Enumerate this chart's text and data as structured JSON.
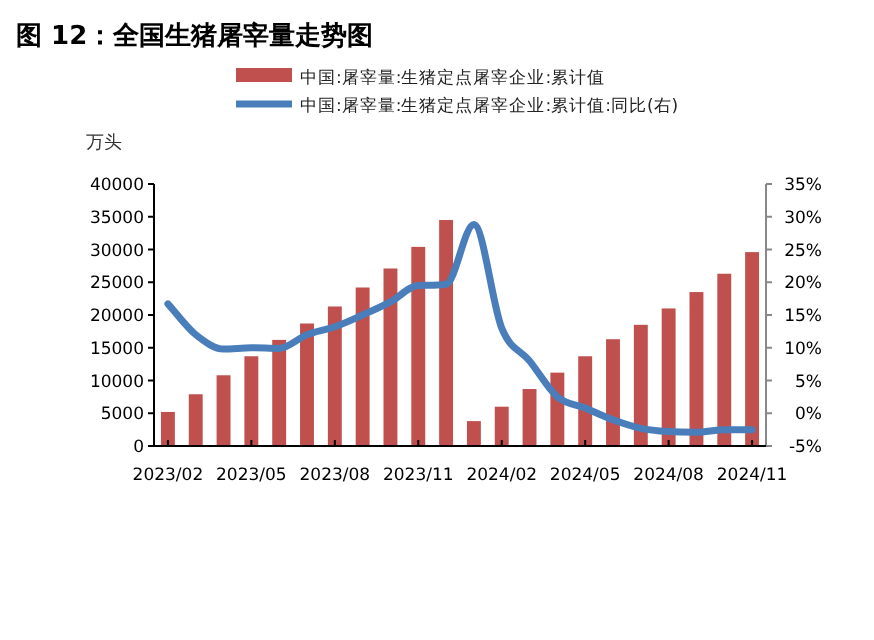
{
  "chart_data": {
    "type": "bar",
    "title": "图 12：全国生猪屠宰量走势图",
    "ylabel": "万头",
    "categories": [
      "2023/02",
      null,
      null,
      "2023/05",
      null,
      null,
      "2023/08",
      null,
      null,
      "2023/11",
      null,
      null,
      "2024/02",
      null,
      null,
      "2024/05",
      null,
      null,
      "2024/08",
      null,
      null,
      "2024/11"
    ],
    "series": [
      {
        "name": "中国:屠宰量:生猪定点屠宰企业:累计值",
        "color": "#c0504d",
        "values": [
          5200,
          7900,
          10800,
          13700,
          16200,
          18700,
          21300,
          24200,
          27100,
          30400,
          34500,
          3800,
          6000,
          8700,
          11200,
          13700,
          16300,
          18500,
          21000,
          23500,
          26300,
          29600
        ]
      },
      {
        "name": "中国:屠宰量:生猪定点屠宰企业:累计值:同比(右)",
        "type": "line",
        "axis": "y2",
        "color": "#4a7ebb",
        "values": [
          16.7,
          12,
          9.8,
          10,
          9.9,
          12,
          13.2,
          15,
          17,
          19.5,
          19.7,
          28.8,
          13,
          8,
          2.5,
          0.8,
          -1,
          -2.3,
          -2.8,
          -2.9,
          -2.5,
          -2.5
        ]
      }
    ],
    "ylim": [
      0,
      40000
    ],
    "yticks": [
      0,
      5000,
      10000,
      15000,
      20000,
      25000,
      30000,
      35000,
      40000
    ],
    "y2lim": [
      -5,
      35
    ],
    "y2ticks": [
      {
        "value": -5,
        "label": "-5%"
      },
      {
        "value": 0,
        "label": "0%"
      },
      {
        "value": 5,
        "label": "5%"
      },
      {
        "value": 10,
        "label": "10%"
      },
      {
        "value": 15,
        "label": "15%"
      },
      {
        "value": 20,
        "label": "20%"
      },
      {
        "value": 25,
        "label": "25%"
      },
      {
        "value": 30,
        "label": "30%"
      },
      {
        "value": 35,
        "label": "35%"
      }
    ],
    "legend": "top right"
  }
}
